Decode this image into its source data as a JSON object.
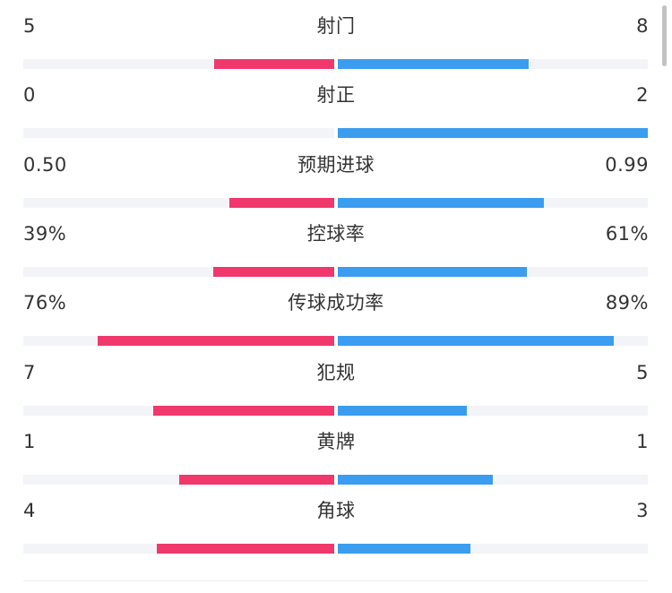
{
  "colors": {
    "home": "#f0386d",
    "away": "#3a9df0",
    "track": "#f3f4f7"
  },
  "stats": [
    {
      "name": "射门",
      "left": "5",
      "right": "8",
      "left_share": 0.385,
      "right_share": 0.615
    },
    {
      "name": "射正",
      "left": "0",
      "right": "2",
      "left_share": 0.0,
      "right_share": 1.0
    },
    {
      "name": "预期进球",
      "left": "0.50",
      "right": "0.99",
      "left_share": 0.336,
      "right_share": 0.664
    },
    {
      "name": "控球率",
      "left": "39%",
      "right": "61%",
      "left_share": 0.39,
      "right_share": 0.61
    },
    {
      "name": "传球成功率",
      "left": "76%",
      "right": "89%",
      "left_share": 0.76,
      "right_share": 0.89
    },
    {
      "name": "犯规",
      "left": "7",
      "right": "5",
      "left_share": 0.583,
      "right_share": 0.417
    },
    {
      "name": "黄牌",
      "left": "1",
      "right": "1",
      "left_share": 0.5,
      "right_share": 0.5
    },
    {
      "name": "角球",
      "left": "4",
      "right": "3",
      "left_share": 0.571,
      "right_share": 0.429
    }
  ]
}
